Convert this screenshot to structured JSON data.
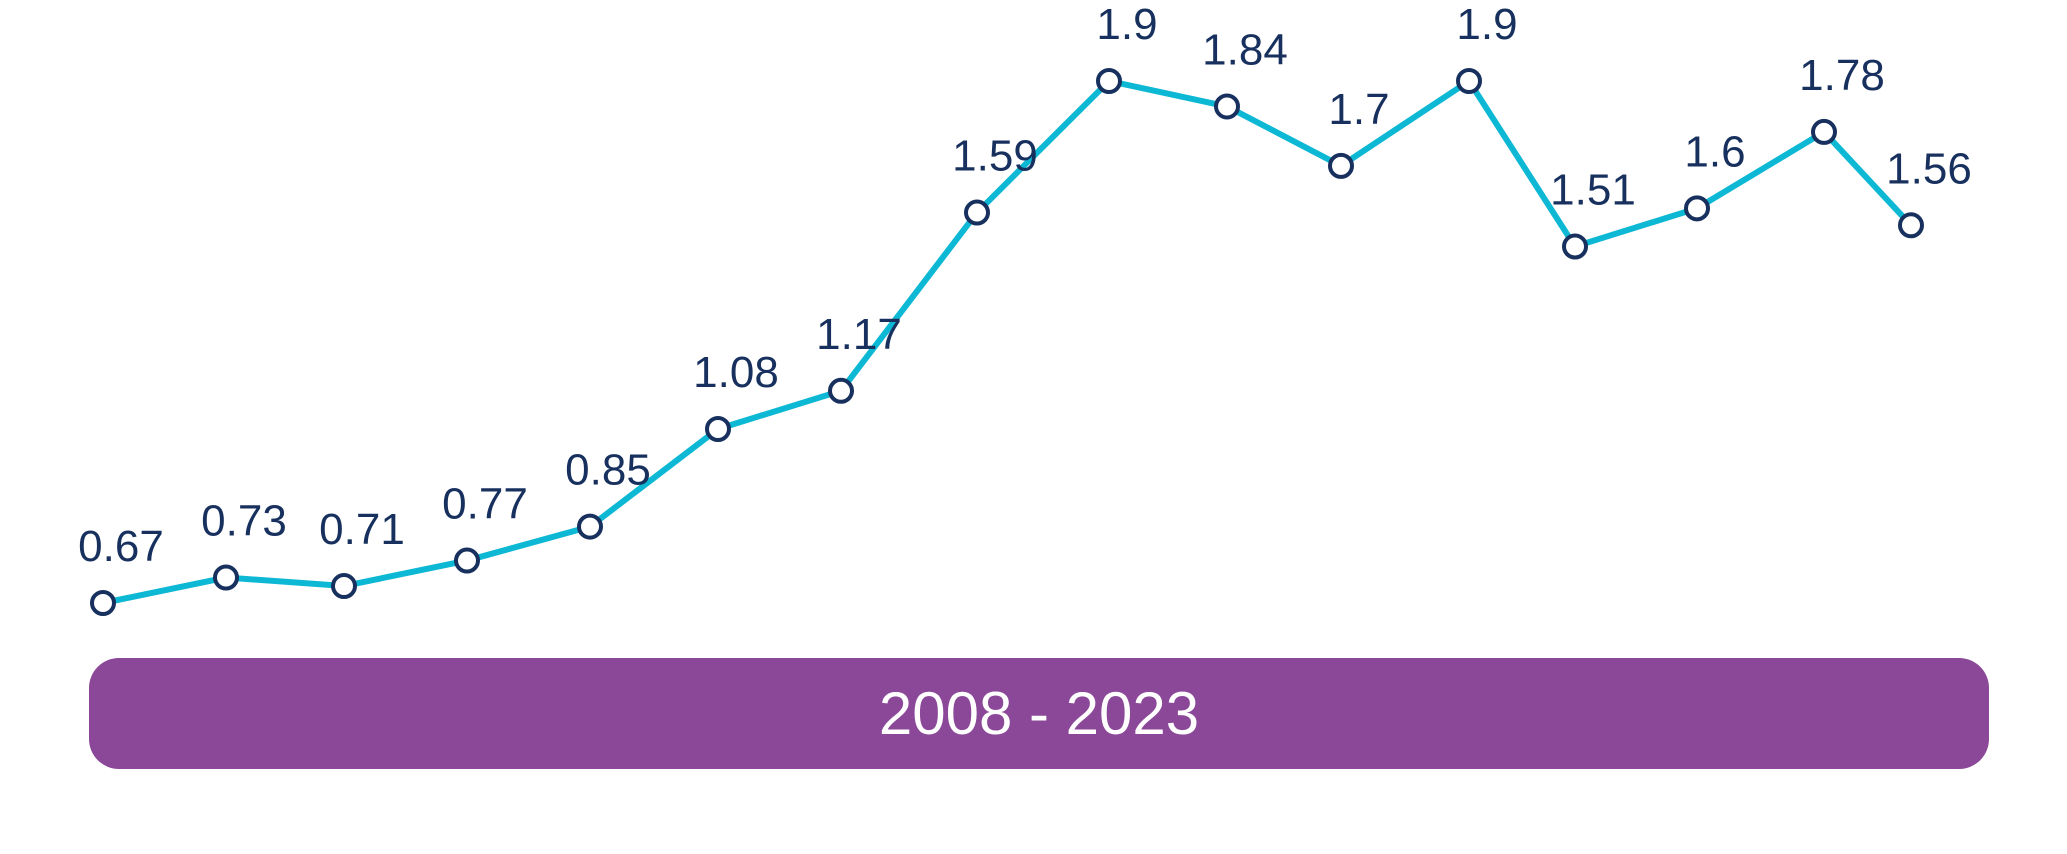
{
  "chart_data": {
    "type": "line",
    "values": [
      0.67,
      0.73,
      0.71,
      0.77,
      0.85,
      1.08,
      1.17,
      1.59,
      1.9,
      1.84,
      1.7,
      1.9,
      1.51,
      1.6,
      1.78,
      1.56
    ],
    "value_labels": [
      "0.67",
      "0.73",
      "0.71",
      "0.77",
      "0.85",
      "1.08",
      "1.17",
      "1.59",
      "1.9",
      "1.84",
      "1.7",
      "1.9",
      "1.51",
      "1.6",
      "1.78",
      "1.56"
    ],
    "title": "",
    "xlabel": "",
    "ylabel": "",
    "grid": false,
    "legend": "none"
  },
  "period_label": "2008 - 2023",
  "colors": {
    "line": "#0cb8d4",
    "marker_stroke": "#17305e",
    "marker_fill": "#ffffff",
    "label_text": "#17305e",
    "period_bar": "#8b4898",
    "period_text": "#ffffff"
  }
}
